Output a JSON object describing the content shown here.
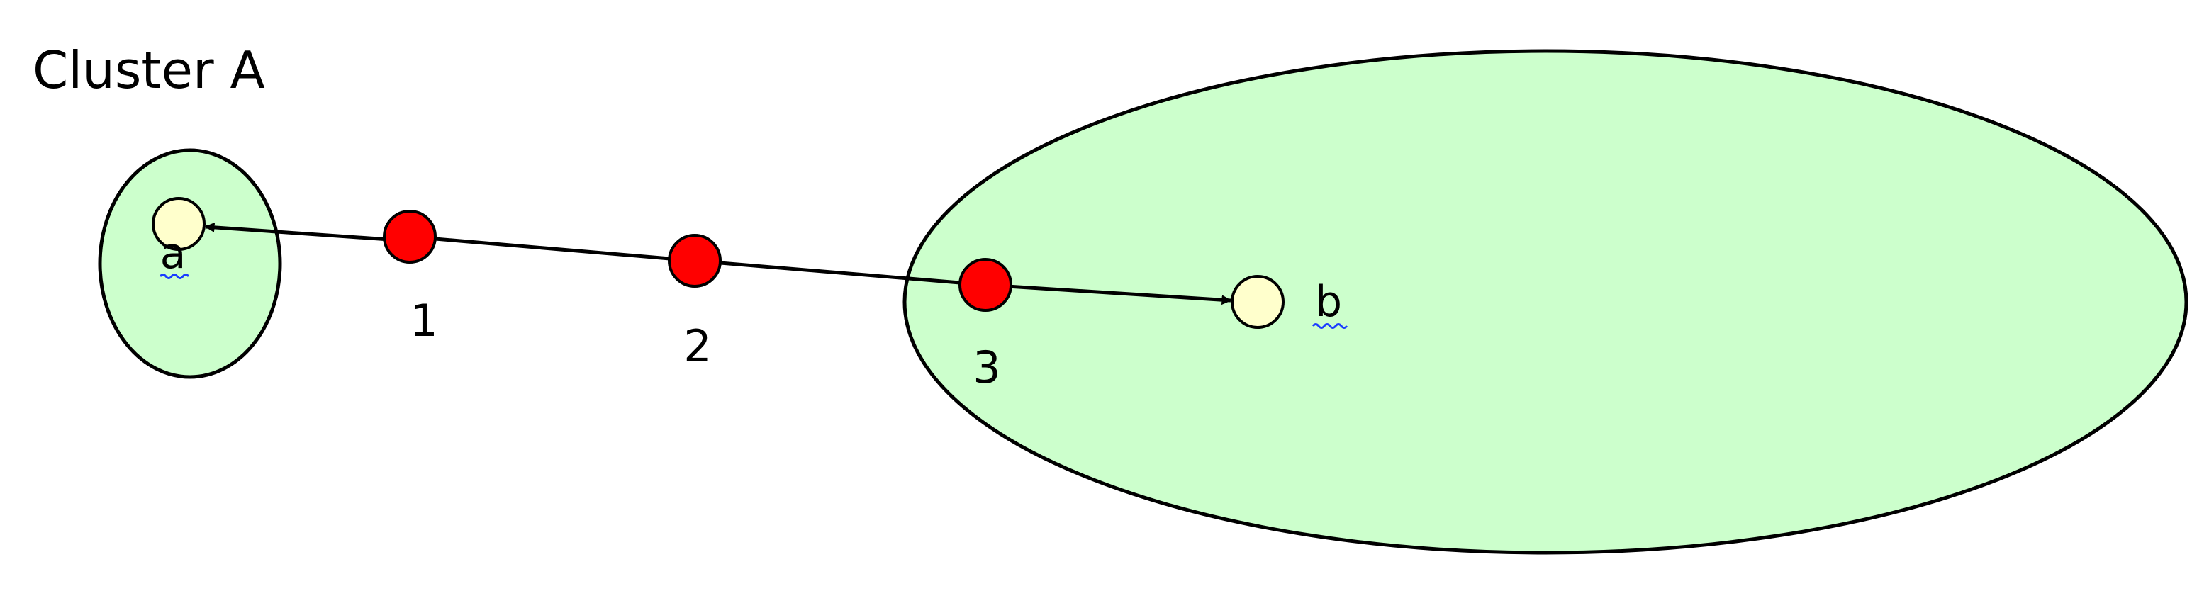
{
  "title": "Cluster A",
  "nodes": {
    "a": {
      "label": "a"
    },
    "b": {
      "label": "b"
    }
  },
  "points": [
    {
      "label": "1"
    },
    {
      "label": "2"
    },
    {
      "label": "3"
    }
  ],
  "colors": {
    "cluster_fill": "#ccffcc",
    "node_fill": "#ffffcc",
    "point_fill": "#ff0000",
    "stroke": "#000000",
    "spellcheck_underline": "#1a3cff"
  }
}
